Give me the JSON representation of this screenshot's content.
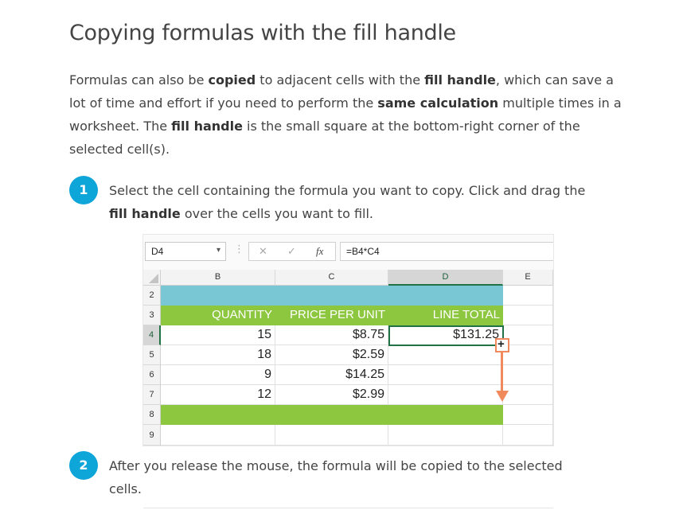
{
  "title": "Copying formulas with the fill handle",
  "intro": {
    "p1": "Formulas can also be ",
    "b1": "copied",
    "p2": " to adjacent cells with the ",
    "b2": "fill handle",
    "p3": ", which can save a lot of time and effort if you need to perform the ",
    "b3": "same calculation",
    "p4": " multiple times in a worksheet. The ",
    "b4": "fill handle",
    "p5": " is the small square at the bottom-right corner of the selected cell(s)."
  },
  "steps": [
    {
      "number": "1",
      "t1": "Select the cell containing the formula you want to copy. Click and drag the ",
      "b1": "fill handle",
      "t2": " over the cells you want to fill."
    },
    {
      "number": "2",
      "text": "After you release the mouse, the formula will be copied to the selected cells."
    }
  ],
  "spreadsheet": {
    "name_box": "D4",
    "name_box_dropdown": "▾",
    "separator": "⋮",
    "cancel_icon": "✕",
    "enter_icon": "✓",
    "fx_label": "fx",
    "formula": "=B4*C4",
    "columns": [
      "B",
      "C",
      "D",
      "E"
    ],
    "selected_column": "D",
    "rows": [
      "2",
      "3",
      "4",
      "5",
      "6",
      "7",
      "8",
      "9"
    ],
    "selected_row": "4",
    "header": {
      "quantity": "QUANTITY",
      "price": "PRICE PER UNIT",
      "total": "LINE TOTAL"
    },
    "data": [
      {
        "quantity": "15",
        "price": "$8.75",
        "total": "$131.25"
      },
      {
        "quantity": "18",
        "price": "$2.59",
        "total": ""
      },
      {
        "quantity": "9",
        "price": "$14.25",
        "total": ""
      },
      {
        "quantity": "12",
        "price": "$2.99",
        "total": ""
      }
    ],
    "fill_handle_glyph": "+",
    "colors": {
      "teal_band": "#79c6d4",
      "green_band": "#8dc63f",
      "selection": "#217346",
      "drag_arrow": "#f08a5d",
      "step_badge": "#0ea5d8"
    }
  }
}
